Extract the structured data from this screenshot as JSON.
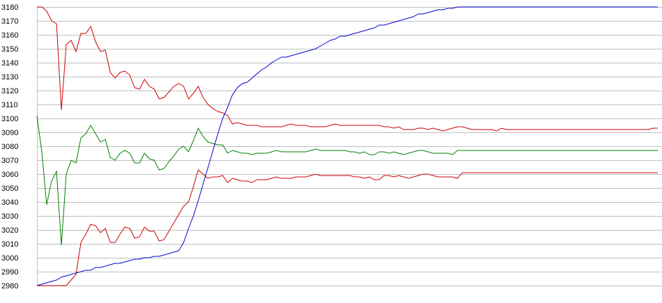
{
  "chart_data": {
    "type": "line",
    "title": "",
    "xlabel": "",
    "ylabel": "",
    "ylim": [
      2980,
      3180
    ],
    "yticks": [
      3180,
      3170,
      3160,
      3150,
      3140,
      3130,
      3120,
      3110,
      3100,
      3090,
      3080,
      3070,
      3060,
      3050,
      3040,
      3030,
      3020,
      3010,
      3000,
      2990,
      2980
    ],
    "grid": true,
    "legend": "none",
    "x": [
      0,
      1,
      2,
      3,
      4,
      5,
      6,
      7,
      8,
      9,
      10,
      11,
      12,
      13,
      14,
      15,
      16,
      17,
      18,
      19,
      20,
      21,
      22,
      23,
      24,
      25,
      26,
      27,
      28,
      29,
      30,
      31,
      32,
      33,
      34,
      35,
      36,
      37,
      38,
      39,
      40,
      41,
      42,
      43,
      44,
      45,
      46,
      47,
      48,
      49,
      50,
      51,
      52,
      53,
      54,
      55,
      56,
      57,
      58,
      59,
      60,
      61,
      62,
      63,
      64,
      65,
      66,
      67,
      68,
      69,
      70,
      71,
      72,
      73,
      74,
      75,
      76,
      77,
      78,
      79,
      80,
      81,
      82,
      83,
      84,
      85,
      86,
      87,
      88,
      89,
      90,
      91,
      92,
      93,
      94,
      95,
      96,
      97,
      98,
      99,
      100,
      101,
      102,
      103,
      104,
      105,
      106,
      107,
      108,
      109,
      110,
      111,
      112,
      113,
      114,
      115,
      116,
      117,
      118,
      119,
      120,
      121,
      122,
      123,
      124,
      125,
      126,
      127
    ],
    "series": [
      {
        "color": "#cc0000",
        "values": [
          3180,
          3180,
          3177,
          3170,
          3168,
          3106,
          3153,
          3156,
          3148,
          3161,
          3161,
          3166,
          3155,
          3148,
          3149,
          3133,
          3129,
          3133,
          3134,
          3131,
          3122,
          3121,
          3128,
          3123,
          3121,
          3114,
          3115,
          3119,
          3123,
          3125,
          3123,
          3114,
          3118,
          3123,
          3115,
          3110,
          3107,
          3105,
          3104,
          3102,
          3096,
          3097,
          3096,
          3095,
          3095,
          3095,
          3094,
          3094,
          3094,
          3094,
          3094,
          3095,
          3096,
          3095,
          3095,
          3095,
          3094,
          3094,
          3094,
          3094,
          3095,
          3096,
          3095,
          3095,
          3095,
          3095,
          3095,
          3095,
          3095,
          3095,
          3095,
          3094,
          3094,
          3093,
          3094,
          3092,
          3092,
          3092,
          3093,
          3093,
          3092,
          3093,
          3092,
          3091,
          3092,
          3093,
          3094,
          3094,
          3093,
          3092,
          3092,
          3092,
          3092,
          3092,
          3091,
          3093,
          3092,
          3092,
          3092,
          3092,
          3092,
          3092,
          3092,
          3092,
          3092,
          3092,
          3092,
          3092,
          3092,
          3092,
          3092,
          3092,
          3092,
          3092,
          3092,
          3092,
          3092,
          3092,
          3092,
          3092,
          3092,
          3092,
          3092,
          3092,
          3092,
          3092,
          3093,
          3093
        ]
      },
      {
        "color": "#008000",
        "values": [
          3102,
          3076,
          3038,
          3055,
          3062,
          3009,
          3060,
          3070,
          3068,
          3086,
          3089,
          3095,
          3089,
          3083,
          3085,
          3072,
          3070,
          3075,
          3077,
          3075,
          3068,
          3068,
          3075,
          3071,
          3070,
          3063,
          3064,
          3069,
          3073,
          3078,
          3080,
          3076,
          3084,
          3093,
          3087,
          3083,
          3082,
          3081,
          3081,
          3075,
          3077,
          3076,
          3075,
          3075,
          3074,
          3075,
          3075,
          3075,
          3076,
          3077,
          3076,
          3076,
          3076,
          3076,
          3076,
          3076,
          3077,
          3078,
          3077,
          3077,
          3077,
          3077,
          3077,
          3077,
          3076,
          3076,
          3075,
          3076,
          3074,
          3074,
          3076,
          3076,
          3075,
          3076,
          3075,
          3074,
          3075,
          3076,
          3077,
          3077,
          3076,
          3075,
          3075,
          3075,
          3075,
          3074,
          3077,
          3077,
          3077,
          3077,
          3077,
          3077,
          3077,
          3077,
          3077,
          3077,
          3077,
          3077,
          3077,
          3077,
          3077,
          3077,
          3077,
          3077,
          3077,
          3077,
          3077,
          3077,
          3077,
          3077,
          3077,
          3077,
          3077,
          3077,
          3077,
          3077,
          3077,
          3077,
          3077,
          3077,
          3077,
          3077,
          3077,
          3077,
          3077,
          3077,
          3077,
          3077
        ]
      },
      {
        "color": "#cc0000",
        "values": [
          2980,
          2980,
          2980,
          2980,
          2980,
          2980,
          2980,
          2984,
          2988,
          3011,
          3017,
          3024,
          3023,
          3018,
          3021,
          3011,
          3011,
          3017,
          3022,
          3021,
          3014,
          3015,
          3022,
          3019,
          3019,
          3012,
          3013,
          3019,
          3025,
          3031,
          3037,
          3040,
          3051,
          3063,
          3060,
          3057,
          3058,
          3058,
          3059,
          3054,
          3057,
          3056,
          3055,
          3055,
          3054,
          3056,
          3056,
          3056,
          3057,
          3058,
          3057,
          3057,
          3057,
          3058,
          3058,
          3058,
          3059,
          3060,
          3059,
          3059,
          3059,
          3059,
          3059,
          3059,
          3059,
          3058,
          3058,
          3057,
          3058,
          3056,
          3056,
          3059,
          3059,
          3058,
          3059,
          3058,
          3057,
          3058,
          3059,
          3060,
          3060,
          3059,
          3058,
          3058,
          3058,
          3058,
          3057,
          3061,
          3061,
          3061,
          3061,
          3061,
          3061,
          3061,
          3061,
          3061,
          3061,
          3061,
          3061,
          3061,
          3061,
          3061,
          3061,
          3061,
          3061,
          3061,
          3061,
          3061,
          3061,
          3061,
          3061,
          3061,
          3061,
          3061,
          3061,
          3061,
          3061,
          3061,
          3061,
          3061,
          3061,
          3061,
          3061,
          3061,
          3061,
          3061,
          3061,
          3061
        ]
      },
      {
        "color": "#0000cc",
        "values": [
          2980,
          2981,
          2982,
          2983,
          2984,
          2986,
          2987,
          2988,
          2989,
          2990,
          2991,
          2991,
          2993,
          2993,
          2994,
          2995,
          2996,
          2996,
          2997,
          2998,
          2999,
          2999,
          3000,
          3000,
          3001,
          3001,
          3002,
          3003,
          3004,
          3005,
          3011,
          3021,
          3030,
          3041,
          3053,
          3065,
          3077,
          3089,
          3100,
          3108,
          3117,
          3122,
          3125,
          3126,
          3129,
          3132,
          3135,
          3137,
          3140,
          3142,
          3144,
          3144,
          3145,
          3146,
          3147,
          3148,
          3149,
          3150,
          3152,
          3154,
          3156,
          3157,
          3159,
          3159,
          3160,
          3161,
          3162,
          3163,
          3164,
          3165,
          3167,
          3167,
          3168,
          3169,
          3170,
          3171,
          3172,
          3173,
          3175,
          3175,
          3176,
          3177,
          3178,
          3178,
          3179,
          3179,
          3180,
          3180,
          3180,
          3180,
          3180,
          3180,
          3180,
          3180,
          3180,
          3180,
          3180,
          3180,
          3180,
          3180,
          3180,
          3180,
          3180,
          3180,
          3180,
          3180,
          3180,
          3180,
          3180,
          3180,
          3180,
          3180,
          3180,
          3180,
          3180,
          3180,
          3180,
          3180,
          3180,
          3180,
          3180,
          3180,
          3180,
          3180,
          3180,
          3180,
          3180,
          3180
        ]
      }
    ]
  }
}
